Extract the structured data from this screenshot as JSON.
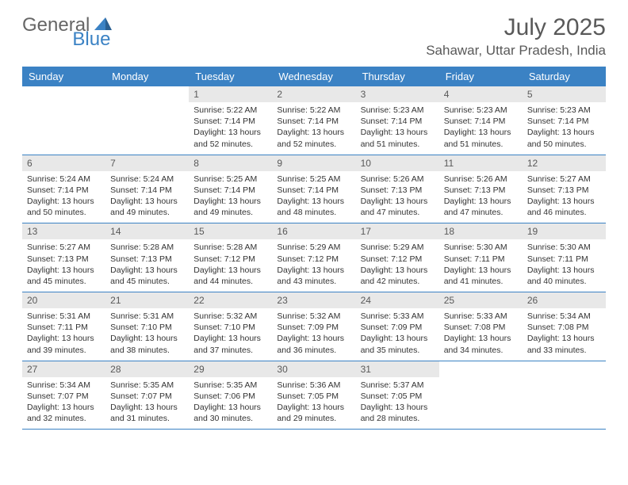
{
  "logo": {
    "text1": "General",
    "text2": "Blue"
  },
  "title": "July 2025",
  "location": "Sahawar, Uttar Pradesh, India",
  "colors": {
    "header_bar": "#3b82c4",
    "daynum_bg": "#e8e8e8",
    "text_muted": "#595959",
    "text_body": "#333333",
    "logo_gray": "#666666",
    "logo_blue": "#3b82c4"
  },
  "weekdays": [
    "Sunday",
    "Monday",
    "Tuesday",
    "Wednesday",
    "Thursday",
    "Friday",
    "Saturday"
  ],
  "weeks": [
    [
      null,
      null,
      {
        "n": "1",
        "sr": "5:22 AM",
        "ss": "7:14 PM",
        "dl": "13 hours and 52 minutes."
      },
      {
        "n": "2",
        "sr": "5:22 AM",
        "ss": "7:14 PM",
        "dl": "13 hours and 52 minutes."
      },
      {
        "n": "3",
        "sr": "5:23 AM",
        "ss": "7:14 PM",
        "dl": "13 hours and 51 minutes."
      },
      {
        "n": "4",
        "sr": "5:23 AM",
        "ss": "7:14 PM",
        "dl": "13 hours and 51 minutes."
      },
      {
        "n": "5",
        "sr": "5:23 AM",
        "ss": "7:14 PM",
        "dl": "13 hours and 50 minutes."
      }
    ],
    [
      {
        "n": "6",
        "sr": "5:24 AM",
        "ss": "7:14 PM",
        "dl": "13 hours and 50 minutes."
      },
      {
        "n": "7",
        "sr": "5:24 AM",
        "ss": "7:14 PM",
        "dl": "13 hours and 49 minutes."
      },
      {
        "n": "8",
        "sr": "5:25 AM",
        "ss": "7:14 PM",
        "dl": "13 hours and 49 minutes."
      },
      {
        "n": "9",
        "sr": "5:25 AM",
        "ss": "7:14 PM",
        "dl": "13 hours and 48 minutes."
      },
      {
        "n": "10",
        "sr": "5:26 AM",
        "ss": "7:13 PM",
        "dl": "13 hours and 47 minutes."
      },
      {
        "n": "11",
        "sr": "5:26 AM",
        "ss": "7:13 PM",
        "dl": "13 hours and 47 minutes."
      },
      {
        "n": "12",
        "sr": "5:27 AM",
        "ss": "7:13 PM",
        "dl": "13 hours and 46 minutes."
      }
    ],
    [
      {
        "n": "13",
        "sr": "5:27 AM",
        "ss": "7:13 PM",
        "dl": "13 hours and 45 minutes."
      },
      {
        "n": "14",
        "sr": "5:28 AM",
        "ss": "7:13 PM",
        "dl": "13 hours and 45 minutes."
      },
      {
        "n": "15",
        "sr": "5:28 AM",
        "ss": "7:12 PM",
        "dl": "13 hours and 44 minutes."
      },
      {
        "n": "16",
        "sr": "5:29 AM",
        "ss": "7:12 PM",
        "dl": "13 hours and 43 minutes."
      },
      {
        "n": "17",
        "sr": "5:29 AM",
        "ss": "7:12 PM",
        "dl": "13 hours and 42 minutes."
      },
      {
        "n": "18",
        "sr": "5:30 AM",
        "ss": "7:11 PM",
        "dl": "13 hours and 41 minutes."
      },
      {
        "n": "19",
        "sr": "5:30 AM",
        "ss": "7:11 PM",
        "dl": "13 hours and 40 minutes."
      }
    ],
    [
      {
        "n": "20",
        "sr": "5:31 AM",
        "ss": "7:11 PM",
        "dl": "13 hours and 39 minutes."
      },
      {
        "n": "21",
        "sr": "5:31 AM",
        "ss": "7:10 PM",
        "dl": "13 hours and 38 minutes."
      },
      {
        "n": "22",
        "sr": "5:32 AM",
        "ss": "7:10 PM",
        "dl": "13 hours and 37 minutes."
      },
      {
        "n": "23",
        "sr": "5:32 AM",
        "ss": "7:09 PM",
        "dl": "13 hours and 36 minutes."
      },
      {
        "n": "24",
        "sr": "5:33 AM",
        "ss": "7:09 PM",
        "dl": "13 hours and 35 minutes."
      },
      {
        "n": "25",
        "sr": "5:33 AM",
        "ss": "7:08 PM",
        "dl": "13 hours and 34 minutes."
      },
      {
        "n": "26",
        "sr": "5:34 AM",
        "ss": "7:08 PM",
        "dl": "13 hours and 33 minutes."
      }
    ],
    [
      {
        "n": "27",
        "sr": "5:34 AM",
        "ss": "7:07 PM",
        "dl": "13 hours and 32 minutes."
      },
      {
        "n": "28",
        "sr": "5:35 AM",
        "ss": "7:07 PM",
        "dl": "13 hours and 31 minutes."
      },
      {
        "n": "29",
        "sr": "5:35 AM",
        "ss": "7:06 PM",
        "dl": "13 hours and 30 minutes."
      },
      {
        "n": "30",
        "sr": "5:36 AM",
        "ss": "7:05 PM",
        "dl": "13 hours and 29 minutes."
      },
      {
        "n": "31",
        "sr": "5:37 AM",
        "ss": "7:05 PM",
        "dl": "13 hours and 28 minutes."
      },
      null,
      null
    ]
  ],
  "labels": {
    "sunrise": "Sunrise:",
    "sunset": "Sunset:",
    "daylight": "Daylight:"
  }
}
